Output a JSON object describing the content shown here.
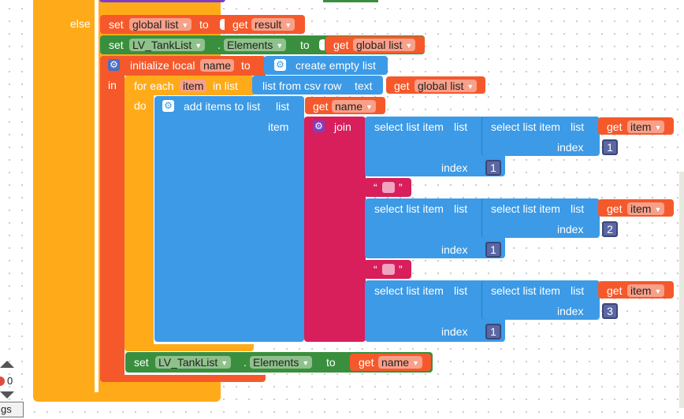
{
  "colors": {
    "control_orange": "#ffab19",
    "variable_red": "#f5592b",
    "component_green": "#3a8f3e",
    "list_blue": "#3c9ae6",
    "text_pink": "#d81e5b",
    "math_blue": "#3f4fa1",
    "procedure_purple": "#7e3fc4"
  },
  "blocks": {
    "else_label": "else",
    "set_global": {
      "set": "set",
      "var": "global list",
      "to": "to",
      "get": "get",
      "val": "result"
    },
    "set_component": {
      "set": "set",
      "component": "LV_TankList",
      "dot": ".",
      "prop": "Elements",
      "to": "to",
      "get": "get",
      "val": "global list"
    },
    "init_local": {
      "label": "initialize local",
      "name": "name",
      "to": "to",
      "value": "create empty list",
      "in": "in"
    },
    "for_each": {
      "label": "for each",
      "var": "item",
      "in_list": "in list",
      "csv": "list from csv row",
      "text": "text",
      "get": "get",
      "val": "global list",
      "do": "do"
    },
    "add_items": {
      "label": "add items to list",
      "list": "list",
      "get": "get",
      "val": "name",
      "item": "item"
    },
    "join": {
      "label": "join"
    },
    "select": {
      "label": "select list item",
      "list": "list",
      "index": "index",
      "get": "get",
      "val": "item"
    },
    "indices": {
      "row1_inner": "1",
      "row1_outer": "1",
      "row2_inner": "2",
      "row2_outer": "1",
      "row3_inner": "3",
      "row3_outer": "1"
    },
    "text_quote_open": "“",
    "text_quote_close": "”",
    "set_component2": {
      "set": "set",
      "component": "LV_TankList",
      "dot": ".",
      "prop": "Elements",
      "to": "to",
      "get": "get",
      "val": "name"
    }
  },
  "workspace": {
    "warning_count": "0",
    "corner_label": "gs"
  }
}
